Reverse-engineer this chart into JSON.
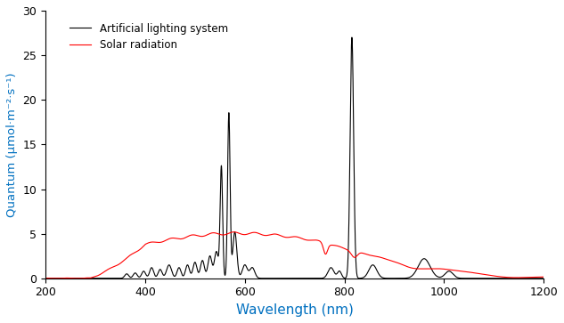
{
  "title": "",
  "xlabel": "Wavelength (nm)",
  "ylabel": "Quantum (μmol·m⁻²·s⁻¹)",
  "xlim": [
    200,
    1200
  ],
  "ylim": [
    0,
    30
  ],
  "xticks": [
    200,
    400,
    600,
    800,
    1000,
    1200
  ],
  "yticks": [
    0,
    5,
    10,
    15,
    20,
    25,
    30
  ],
  "legend": [
    "Artificial lighting system",
    "Solar radiation"
  ],
  "line_colors": [
    "black",
    "red"
  ],
  "background_color": "#ffffff",
  "label_color": "#0070c0",
  "tick_label_color": "black"
}
